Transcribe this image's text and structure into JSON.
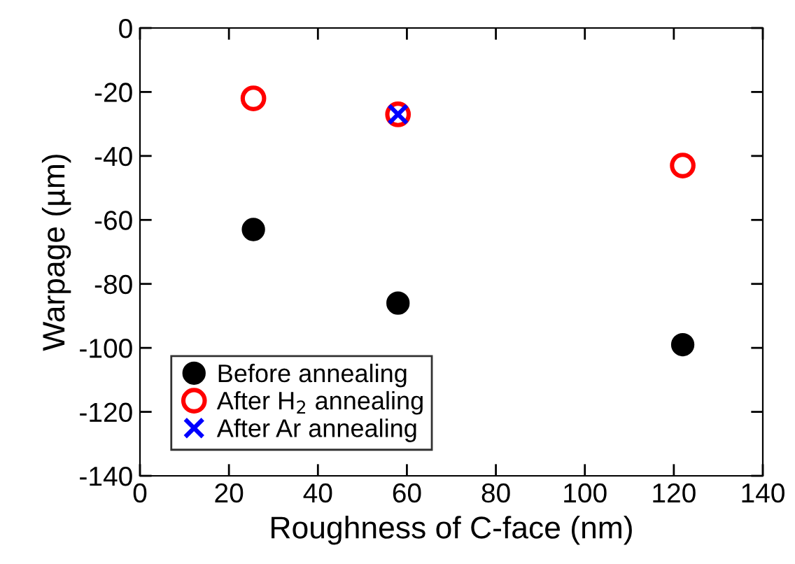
{
  "chart_data": {
    "type": "scatter",
    "xlabel": "Roughness of C-face (nm)",
    "ylabel": "Warpage (µm)",
    "xlim": [
      0,
      140
    ],
    "xticks": [
      0,
      20,
      40,
      60,
      80,
      100,
      120,
      140
    ],
    "ylim": [
      -140,
      0
    ],
    "yticks": [
      -140,
      -120,
      -100,
      -80,
      -60,
      -40,
      -20,
      0
    ],
    "grid": false,
    "legend": "bottom left",
    "series": [
      {
        "name": "Before annealing",
        "color": "#000000",
        "marker": "circle",
        "x": [
          25.5,
          58,
          122
        ],
        "values": [
          -63,
          -86,
          -99
        ]
      },
      {
        "name": "After H$_{2}$ annealing",
        "color": "#ff0000",
        "marker": "circle",
        "x": [
          25.5,
          58,
          122
        ],
        "values": [
          -22,
          -27,
          -43
        ]
      },
      {
        "name": "After Ar annealing",
        "color": "#0000ff",
        "marker": "cross",
        "x": [
          58
        ],
        "values": [
          -27
        ]
      }
    ]
  }
}
